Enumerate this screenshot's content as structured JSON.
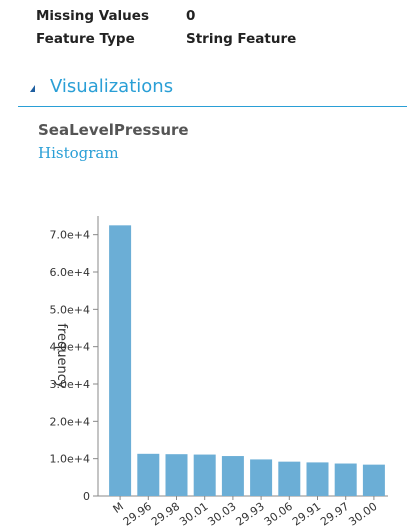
{
  "properties": [
    {
      "label": "Missing Values",
      "value": "0"
    },
    {
      "label": "Feature Type",
      "value": "String Feature"
    }
  ],
  "section": {
    "title": "Visualizations",
    "arrow_icon": "triangle-collapse-icon"
  },
  "column_name": "SeaLevelPressure",
  "visualization_type": "Histogram",
  "chart_data": {
    "type": "bar",
    "ylabel": "frequency",
    "xlabel": "",
    "categories": [
      "M",
      "29.96",
      "29.98",
      "30.01",
      "30.03",
      "29.93",
      "30.06",
      "29.91",
      "29.97",
      "30.00"
    ],
    "values": [
      72500,
      11300,
      11200,
      11100,
      10700,
      9800,
      9200,
      9000,
      8700,
      8400
    ],
    "ylim": [
      0,
      75000
    ],
    "yticks": [
      0,
      10000,
      20000,
      30000,
      40000,
      50000,
      60000,
      70000
    ],
    "ytick_labels": [
      "0",
      "1.0e+4",
      "2.0e+4",
      "3.0e+4",
      "4.0e+4",
      "5.0e+4",
      "6.0e+4",
      "7.0e+4"
    ],
    "bar_color": "#6baed6",
    "grid": false
  }
}
